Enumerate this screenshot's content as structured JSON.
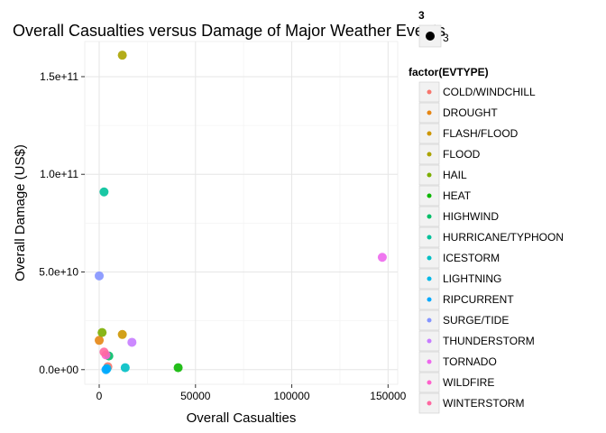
{
  "chart_data": {
    "type": "scatter",
    "title": "Overall Casualties versus Damage of Major Weather Events",
    "xlabel": "Overall Casualties",
    "ylabel": "Overall Damage (US$)",
    "xlim": [
      -7500,
      155000
    ],
    "ylim": [
      -7500000000,
      168000000000
    ],
    "x_ticks": [
      0,
      50000,
      100000,
      150000
    ],
    "x_tick_labels": [
      "0",
      "50000",
      "100000",
      "150000"
    ],
    "y_ticks": [
      0,
      50000000000,
      100000000000,
      150000000000
    ],
    "y_tick_labels": [
      "0.0e+00",
      "5.0e+10",
      "1.0e+11",
      "1.5e+11"
    ],
    "grid": true,
    "legend": {
      "title": "factor(EVTYPE)",
      "position": "right",
      "entries": [
        {
          "label": "COLD/WINDCHILL",
          "color": "#F8766D"
        },
        {
          "label": "DROUGHT",
          "color": "#E68613"
        },
        {
          "label": "FLASH/FLOOD",
          "color": "#CD9600"
        },
        {
          "label": "FLOOD",
          "color": "#ABA300"
        },
        {
          "label": "HAIL",
          "color": "#7CAE00"
        },
        {
          "label": "HEAT",
          "color": "#0CB702"
        },
        {
          "label": "HIGHWIND",
          "color": "#00BE67"
        },
        {
          "label": "HURRICANE/TYPHOON",
          "color": "#00C19A"
        },
        {
          "label": "ICESTORM",
          "color": "#00BFC4"
        },
        {
          "label": "LIGHTNING",
          "color": "#00B8E7"
        },
        {
          "label": "RIPCURRENT",
          "color": "#00A9FF"
        },
        {
          "label": "SURGE/TIDE",
          "color": "#8494FF"
        },
        {
          "label": "THUNDERSTORM",
          "color": "#C77CFF"
        },
        {
          "label": "TORNADO",
          "color": "#ED68ED"
        },
        {
          "label": "WILDFIRE",
          "color": "#FF61CC"
        },
        {
          "label": "WINTERSTORM",
          "color": "#FF68A1"
        }
      ]
    },
    "size_legend": {
      "title": "3",
      "label": "3"
    },
    "points": [
      {
        "label": "COLD/WINDCHILL",
        "x": 4500,
        "y": 1500000000
      },
      {
        "label": "DROUGHT",
        "x": 0,
        "y": 15000000000
      },
      {
        "label": "FLASH/FLOOD",
        "x": 12000,
        "y": 18000000000
      },
      {
        "label": "FLOOD",
        "x": 12000,
        "y": 161000000000
      },
      {
        "label": "HAIL",
        "x": 1500,
        "y": 19000000000
      },
      {
        "label": "HEAT",
        "x": 41000,
        "y": 1000000000
      },
      {
        "label": "HIGHWIND",
        "x": 5000,
        "y": 7000000000
      },
      {
        "label": "HURRICANE/TYPHOON",
        "x": 2500,
        "y": 91000000000
      },
      {
        "label": "ICESTORM",
        "x": 13500,
        "y": 1000000000
      },
      {
        "label": "LIGHTNING",
        "x": 4000,
        "y": 500000000
      },
      {
        "label": "RIPCURRENT",
        "x": 3500,
        "y": 0
      },
      {
        "label": "SURGE/TIDE",
        "x": 0,
        "y": 48000000000
      },
      {
        "label": "THUNDERSTORM",
        "x": 17000,
        "y": 14000000000
      },
      {
        "label": "TORNADO",
        "x": 147000,
        "y": 57500000000
      },
      {
        "label": "WILDFIRE",
        "x": 3500,
        "y": 7500000000
      },
      {
        "label": "WINTERSTORM",
        "x": 2500,
        "y": 9000000000
      }
    ]
  }
}
